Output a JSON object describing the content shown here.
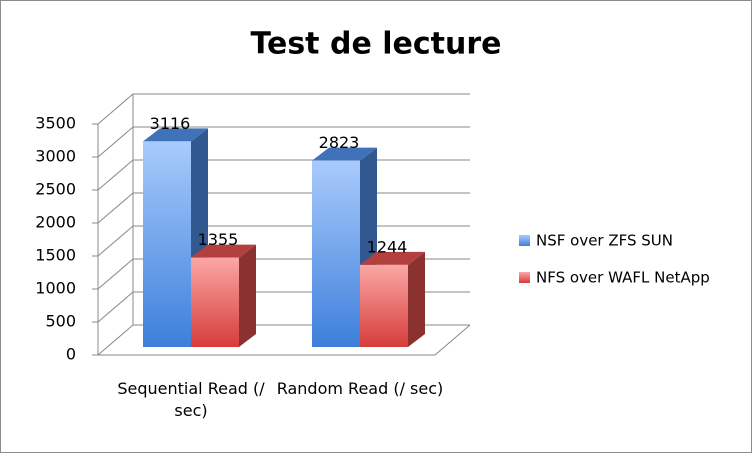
{
  "chart_data": {
    "type": "bar3d",
    "title": "Test de lecture",
    "categories": [
      "Sequential Read (/ sec)",
      "Random Read (/ sec)"
    ],
    "series": [
      {
        "name": "NSF over ZFS SUN",
        "color": "#4f8fe6",
        "values": [
          3116,
          2823
        ]
      },
      {
        "name": "NFS over WAFL NetApp",
        "color": "#e0504d",
        "values": [
          1355,
          1244
        ]
      }
    ],
    "ylim": [
      0,
      3500
    ],
    "yticks": [
      0,
      500,
      1000,
      1500,
      2000,
      2500,
      3000,
      3500
    ],
    "grid": true,
    "legend": "right"
  }
}
